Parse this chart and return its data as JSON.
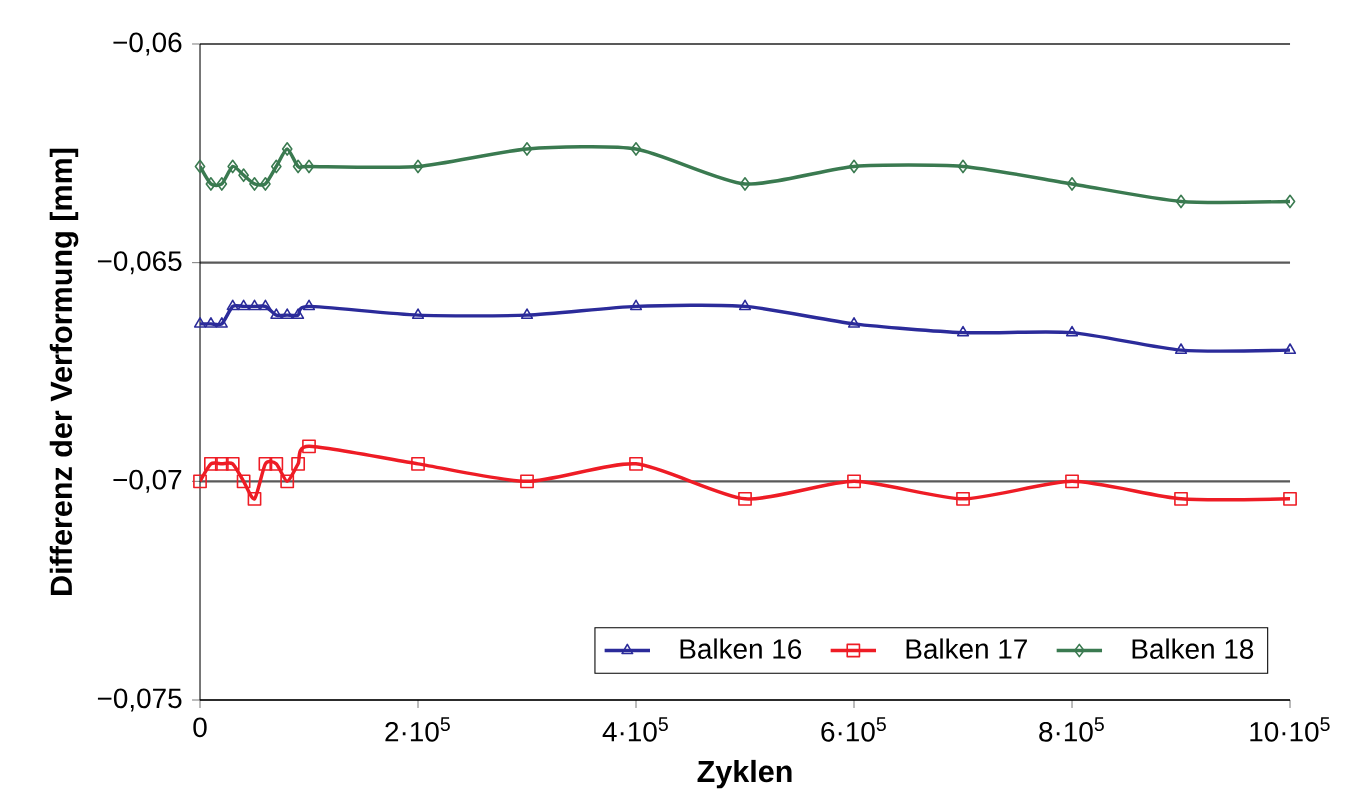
{
  "chart_data": {
    "type": "line",
    "xlabel": "Zyklen",
    "ylabel": "Differenz der Verformung [mm]",
    "x": [
      0,
      10000,
      20000,
      30000,
      40000,
      50000,
      60000,
      70000,
      80000,
      90000,
      100000,
      200000,
      300000,
      400000,
      500000,
      600000,
      700000,
      800000,
      900000,
      1000000
    ],
    "series": [
      {
        "name": "Balken 16",
        "color": "#2b2b9a",
        "marker": "triangle",
        "values": [
          -0.0664,
          -0.0664,
          -0.0664,
          -0.066,
          -0.066,
          -0.066,
          -0.066,
          -0.0662,
          -0.0662,
          -0.0662,
          -0.066,
          -0.0662,
          -0.0662,
          -0.066,
          -0.066,
          -0.0664,
          -0.0666,
          -0.0666,
          -0.067,
          -0.067
        ]
      },
      {
        "name": "Balken 17",
        "color": "#ee1c25",
        "marker": "square",
        "values": [
          -0.07,
          -0.0696,
          -0.0696,
          -0.0696,
          -0.07,
          -0.0704,
          -0.0696,
          -0.0696,
          -0.07,
          -0.0696,
          -0.0692,
          -0.0696,
          -0.07,
          -0.0696,
          -0.0704,
          -0.07,
          -0.0704,
          -0.07,
          -0.0704,
          -0.0704
        ]
      },
      {
        "name": "Balken 18",
        "color": "#3a7a50",
        "marker": "diamond",
        "values": [
          -0.0628,
          -0.0632,
          -0.0632,
          -0.0628,
          -0.063,
          -0.0632,
          -0.0632,
          -0.0628,
          -0.0624,
          -0.0628,
          -0.0628,
          -0.0628,
          -0.0624,
          -0.0624,
          -0.0632,
          -0.0628,
          -0.0628,
          -0.0632,
          -0.0636,
          -0.0636
        ]
      }
    ],
    "xlim": [
      0,
      1000000
    ],
    "xticks": [
      0,
      {
        "value": 200000,
        "label": "2·10$^{5}$"
      },
      {
        "value": 400000,
        "label": "4·10$^{5}$"
      },
      {
        "value": 600000,
        "label": "6·10$^{5}$"
      },
      {
        "value": 800000,
        "label": "8·10$^{5}$"
      },
      {
        "value": 1000000,
        "label": "10·10$^{5}$"
      }
    ],
    "ylim": [
      -0.075,
      -0.06
    ],
    "yticks": [
      {
        "value": -0.075,
        "label": "−0,075"
      },
      {
        "value": -0.07,
        "label": "−0,07"
      },
      {
        "value": -0.065,
        "label": "−0,065"
      },
      {
        "value": -0.06,
        "label": "−0,06"
      }
    ],
    "grid": "y",
    "legend": "bottom right"
  }
}
